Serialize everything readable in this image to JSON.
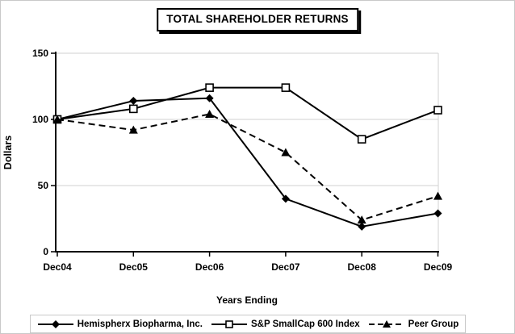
{
  "title": "TOTAL SHAREHOLDER RETURNS",
  "chart_data": {
    "type": "line",
    "title": "TOTAL SHAREHOLDER RETURNS",
    "categories": [
      "Dec04",
      "Dec05",
      "Dec06",
      "Dec07",
      "Dec08",
      "Dec09"
    ],
    "series": [
      {
        "name": "Hemispherx Biopharma, Inc.",
        "marker": "diamond",
        "line": "solid",
        "values": [
          100,
          114,
          116,
          40,
          19,
          29
        ]
      },
      {
        "name": "S&P SmallCap 600 Index",
        "marker": "square",
        "line": "solid",
        "values": [
          100,
          108,
          124,
          124,
          85,
          107
        ]
      },
      {
        "name": "Peer Group",
        "marker": "triangle",
        "line": "dashed",
        "values": [
          100,
          92,
          104,
          75,
          24,
          42
        ]
      }
    ],
    "xlabel": "Years Ending",
    "ylabel": "Dollars",
    "yticks": [
      0,
      50,
      100,
      150
    ],
    "ylim": [
      0,
      150
    ],
    "grid": true,
    "legend_position": "bottom",
    "colors": {
      "series": "#000000",
      "grid": "#d9d9d9",
      "background": "#ffffff",
      "frame_border": "#c9c9c9"
    }
  }
}
